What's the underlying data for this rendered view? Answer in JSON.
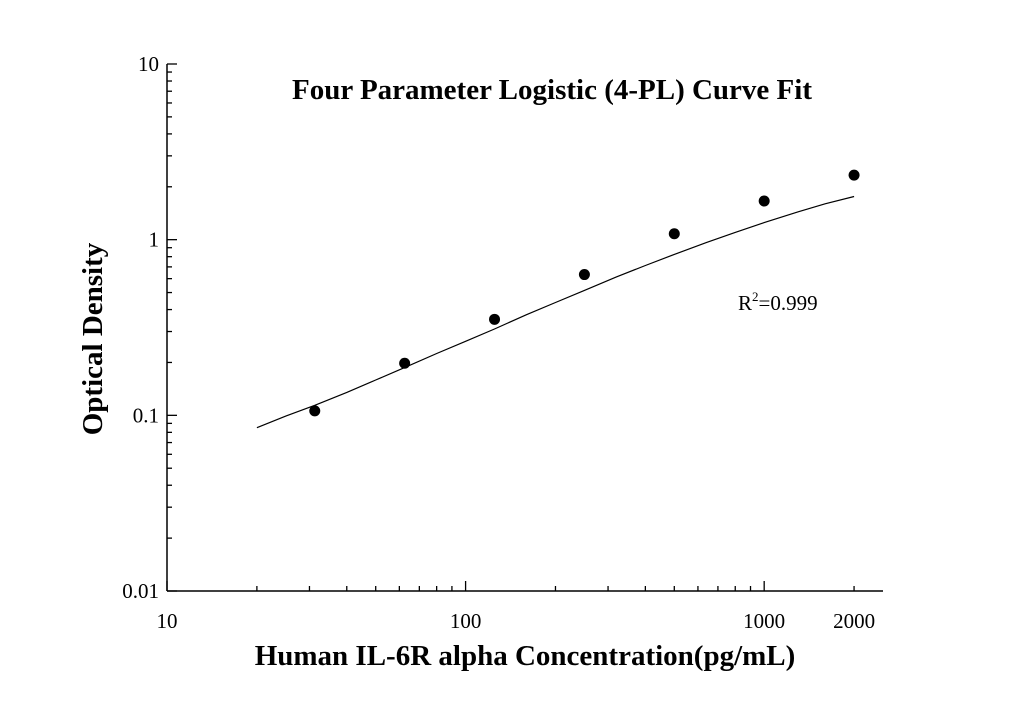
{
  "chart_data": {
    "type": "scatter",
    "title": "Four Parameter Logistic (4-PL) Curve Fit",
    "xlabel": "Human IL-6R alpha Concentration(pg/mL)",
    "ylabel": "Optical Density",
    "xscale": "log",
    "yscale": "log",
    "xlim": [
      10,
      2500
    ],
    "ylim": [
      0.01,
      10
    ],
    "x_ticks": [
      {
        "value": 10,
        "label": "10"
      },
      {
        "value": 100,
        "label": "100"
      },
      {
        "value": 1000,
        "label": "1000"
      },
      {
        "value": 2000,
        "label": "2000"
      }
    ],
    "y_ticks": [
      {
        "value": 0.01,
        "label": "0.01"
      },
      {
        "value": 0.1,
        "label": "0.1"
      },
      {
        "value": 1,
        "label": "1"
      },
      {
        "value": 10,
        "label": "10"
      }
    ],
    "grid": false,
    "legend": "none",
    "points": {
      "x": [
        31.25,
        62.5,
        125,
        250,
        500,
        1000,
        2000
      ],
      "y": [
        0.106,
        0.198,
        0.352,
        0.633,
        1.08,
        1.66,
        2.33
      ]
    },
    "fit_curve": {
      "model": "4PL",
      "x": [
        20,
        25,
        31.25,
        40,
        50,
        62.5,
        80,
        100,
        125,
        160,
        200,
        250,
        320,
        400,
        500,
        640,
        800,
        1000,
        1300,
        1600,
        2000
      ],
      "y": [
        0.085,
        0.099,
        0.114,
        0.135,
        0.159,
        0.187,
        0.225,
        0.264,
        0.31,
        0.374,
        0.439,
        0.514,
        0.614,
        0.713,
        0.824,
        0.962,
        1.1,
        1.25,
        1.44,
        1.6,
        1.76
      ]
    },
    "annotation": {
      "r_base": "R",
      "r_sup": "2",
      "r_value": "=0.999"
    },
    "colors": {
      "points": "#000000",
      "curve": "#000000",
      "axis": "#000000"
    }
  }
}
